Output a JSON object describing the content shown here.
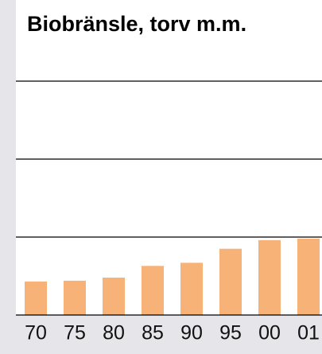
{
  "chart_data": {
    "type": "bar",
    "title": "Biobränsle, torv m.m.",
    "categories": [
      "70",
      "75",
      "80",
      "85",
      "90",
      "95",
      "00",
      "01"
    ],
    "values": [
      0.43,
      0.44,
      0.48,
      0.63,
      0.67,
      0.85,
      0.96,
      0.98
    ],
    "color": "#f6b277",
    "ylim": [
      0,
      3
    ],
    "yticks": [
      0,
      1,
      2,
      3
    ],
    "grid": true
  }
}
